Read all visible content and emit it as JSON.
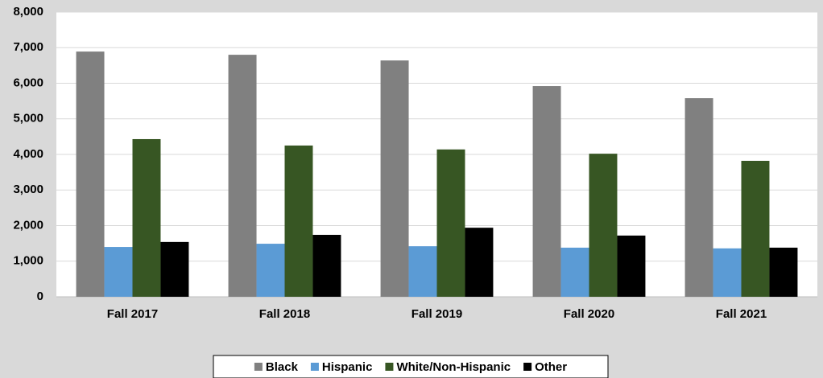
{
  "chart_data": {
    "type": "bar",
    "categories": [
      "Fall 2017",
      "Fall 2018",
      "Fall 2019",
      "Fall 2020",
      "Fall 2021"
    ],
    "series": [
      {
        "name": "Black",
        "color": "#808080",
        "values": [
          6890,
          6800,
          6640,
          5920,
          5580
        ]
      },
      {
        "name": "Hispanic",
        "color": "#5b9bd5",
        "values": [
          1400,
          1490,
          1420,
          1380,
          1360
        ]
      },
      {
        "name": "White/Non-Hispanic",
        "color": "#375623",
        "values": [
          4430,
          4250,
          4140,
          4020,
          3820
        ]
      },
      {
        "name": "Other",
        "color": "#000000",
        "values": [
          1540,
          1740,
          1940,
          1720,
          1380
        ]
      }
    ],
    "ylim": [
      0,
      8000
    ],
    "yticks": [
      0,
      {
        "value": 1000,
        "label": "1,000"
      },
      {
        "value": 2000,
        "label": "2,000"
      },
      {
        "value": 3000,
        "label": "3,000"
      },
      {
        "value": 4000,
        "label": "4,000"
      },
      {
        "value": 5000,
        "label": "5,000"
      },
      {
        "value": 6000,
        "label": "6,000"
      },
      {
        "value": 7000,
        "label": "7,000"
      },
      {
        "value": 8000,
        "label": "8,000"
      }
    ],
    "grid": true,
    "legend": "bottom"
  }
}
